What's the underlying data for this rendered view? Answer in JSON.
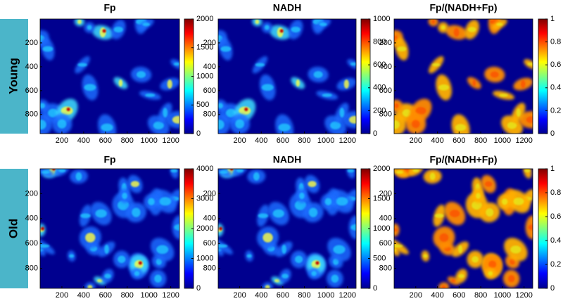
{
  "row_labels": [
    "Young",
    "Old"
  ],
  "chart_data": [
    {
      "type": "heatmap",
      "title": "Fp",
      "colormap": "jet",
      "xlim": [
        0,
        1280
      ],
      "xticks": [
        200,
        400,
        600,
        800,
        1000,
        1200
      ],
      "ylim": [
        0,
        960
      ],
      "yticks": [
        200,
        400,
        600,
        800
      ],
      "clim": [
        0,
        2000
      ],
      "cticks": [
        0,
        500,
        1000,
        1500,
        2000
      ]
    },
    {
      "type": "heatmap",
      "title": "NADH",
      "colormap": "jet",
      "xlim": [
        0,
        1280
      ],
      "xticks": [
        200,
        400,
        600,
        800,
        1000,
        1200
      ],
      "ylim": [
        0,
        960
      ],
      "yticks": [
        200,
        400,
        600,
        800
      ],
      "clim": [
        0,
        1000
      ],
      "cticks": [
        0,
        200,
        400,
        600,
        800,
        1000
      ]
    },
    {
      "type": "heatmap",
      "title": "Fp/(NADH+Fp)",
      "colormap": "jet",
      "xlim": [
        0,
        1280
      ],
      "xticks": [
        200,
        400,
        600,
        800,
        1000,
        1200
      ],
      "ylim": [
        0,
        960
      ],
      "yticks": [
        200,
        400,
        600,
        800
      ],
      "clim": [
        0,
        1
      ],
      "cticks": [
        0,
        0.2,
        0.4,
        0.6,
        0.8,
        1
      ]
    },
    {
      "type": "heatmap",
      "title": "Fp",
      "colormap": "jet",
      "xlim": [
        0,
        1280
      ],
      "xticks": [
        200,
        400,
        600,
        800,
        1000,
        1200
      ],
      "ylim": [
        0,
        960
      ],
      "yticks": [
        200,
        400,
        600,
        800
      ],
      "clim": [
        0,
        4000
      ],
      "cticks": [
        0,
        1000,
        2000,
        3000,
        4000
      ]
    },
    {
      "type": "heatmap",
      "title": "NADH",
      "colormap": "jet",
      "xlim": [
        0,
        1280
      ],
      "xticks": [
        200,
        400,
        600,
        800,
        1000,
        1200
      ],
      "ylim": [
        0,
        960
      ],
      "yticks": [
        200,
        400,
        600,
        800
      ],
      "clim": [
        0,
        2000
      ],
      "cticks": [
        0,
        500,
        1000,
        1500,
        2000
      ]
    },
    {
      "type": "heatmap",
      "title": "Fp/(NADH+Fp)",
      "colormap": "jet",
      "xlim": [
        0,
        1280
      ],
      "xticks": [
        200,
        400,
        600,
        800,
        1000,
        1200
      ],
      "ylim": [
        0,
        960
      ],
      "yticks": [
        200,
        400,
        600,
        800
      ],
      "clim": [
        0,
        1
      ],
      "cticks": [
        0,
        0.2,
        0.4,
        0.6,
        0.8,
        1
      ]
    }
  ]
}
